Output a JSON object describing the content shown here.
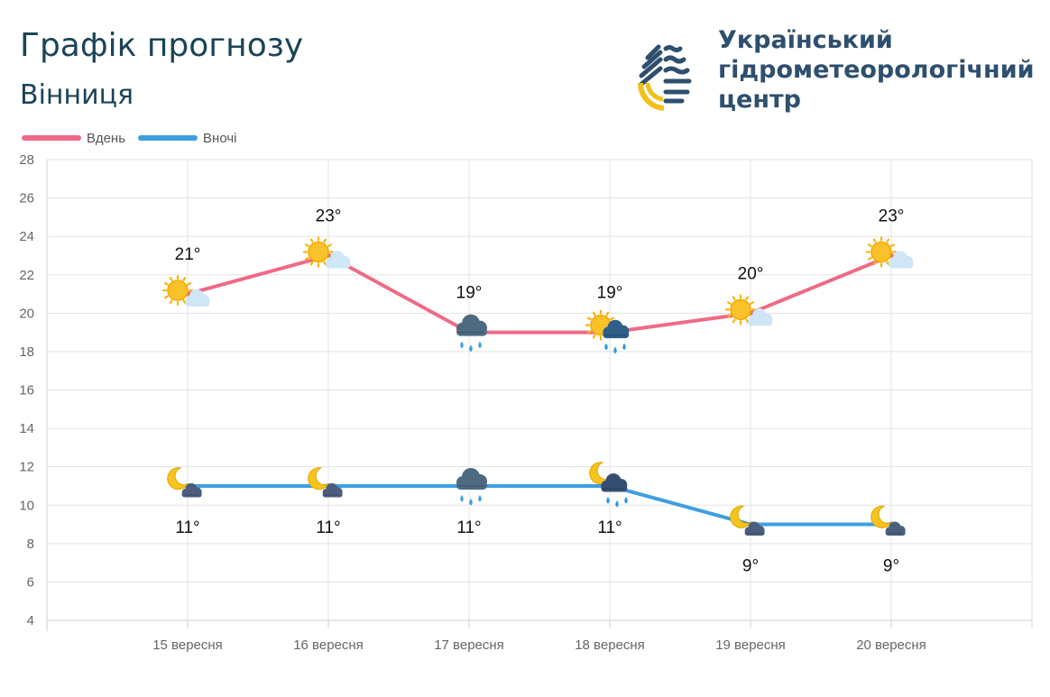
{
  "header": {
    "title": "Графік прогнозу",
    "city": "Вінниця"
  },
  "brand": {
    "name_lines": [
      "Український",
      "гідрометеорологічний",
      "центр"
    ],
    "colors": {
      "text": "#2e4f6e",
      "accent": "#f2c01b"
    }
  },
  "chart_data": {
    "type": "line",
    "categories": [
      "15 вересня",
      "16 вересня",
      "17 вересня",
      "18 вересня",
      "19 вересня",
      "20 вересня"
    ],
    "series": [
      {
        "name": "Вдень",
        "color": "#ef6a86",
        "values": [
          21,
          23,
          19,
          19,
          20,
          23
        ],
        "labels": [
          "21°",
          "23°",
          "19°",
          "19°",
          "20°",
          "23°"
        ],
        "icons": [
          "sun-cloud-icon",
          "sun-cloud-icon",
          "rain-cloud-icon",
          "sun-rain-cloud-icon",
          "sun-cloud-icon",
          "sun-cloud-icon"
        ]
      },
      {
        "name": "Вночі",
        "color": "#3d9fe0",
        "values": [
          11,
          11,
          11,
          11,
          9,
          9
        ],
        "labels": [
          "11°",
          "11°",
          "11°",
          "11°",
          "9°",
          "9°"
        ],
        "icons": [
          "moon-cloud-icon",
          "moon-cloud-icon",
          "rain-cloud-icon",
          "moon-rain-cloud-icon",
          "moon-cloud-icon",
          "moon-cloud-icon"
        ]
      }
    ],
    "ylim": [
      4,
      28
    ],
    "yticks": [
      4,
      6,
      8,
      10,
      12,
      14,
      16,
      18,
      20,
      22,
      24,
      26,
      28
    ],
    "grid": true,
    "legend": "top-left"
  }
}
